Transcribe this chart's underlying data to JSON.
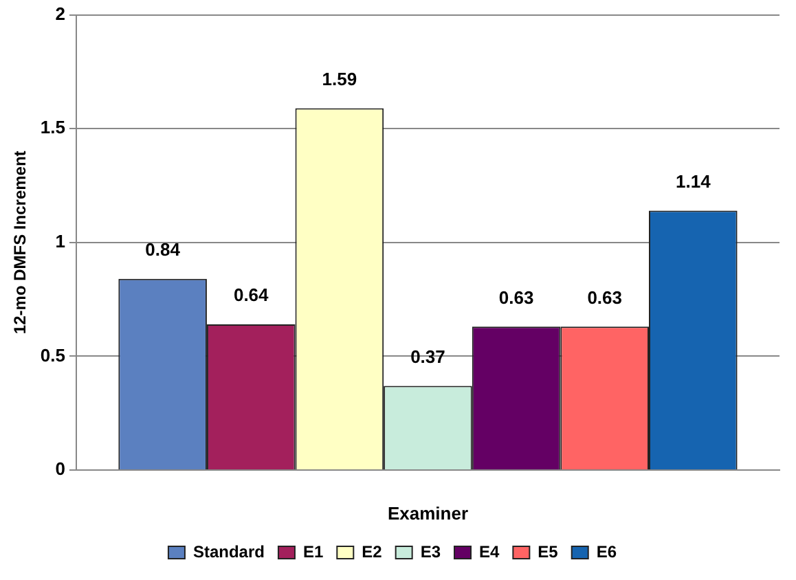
{
  "chart_data": {
    "type": "bar",
    "xlabel": "Examiner",
    "ylabel": "12-mo DMFS Increment",
    "categories": [
      null
    ],
    "series": [
      {
        "name": "Standard",
        "color": "#5b80c0",
        "values": [
          0.84
        ]
      },
      {
        "name": "E1",
        "color": "#a3205c",
        "values": [
          0.64
        ]
      },
      {
        "name": "E2",
        "color": "#ffffc4",
        "values": [
          1.59
        ]
      },
      {
        "name": "E3",
        "color": "#c8ecdc",
        "values": [
          0.37
        ]
      },
      {
        "name": "E4",
        "color": "#640064",
        "values": [
          0.63
        ]
      },
      {
        "name": "E5",
        "color": "#ff6464",
        "values": [
          0.63
        ]
      },
      {
        "name": "E6",
        "color": "#1664b0",
        "values": [
          1.14
        ]
      }
    ],
    "ylim": [
      0,
      2
    ],
    "yticks": [
      0,
      0.5,
      1,
      1.5,
      2
    ],
    "grid": "y",
    "legend": "bottom",
    "data_labels": true
  }
}
